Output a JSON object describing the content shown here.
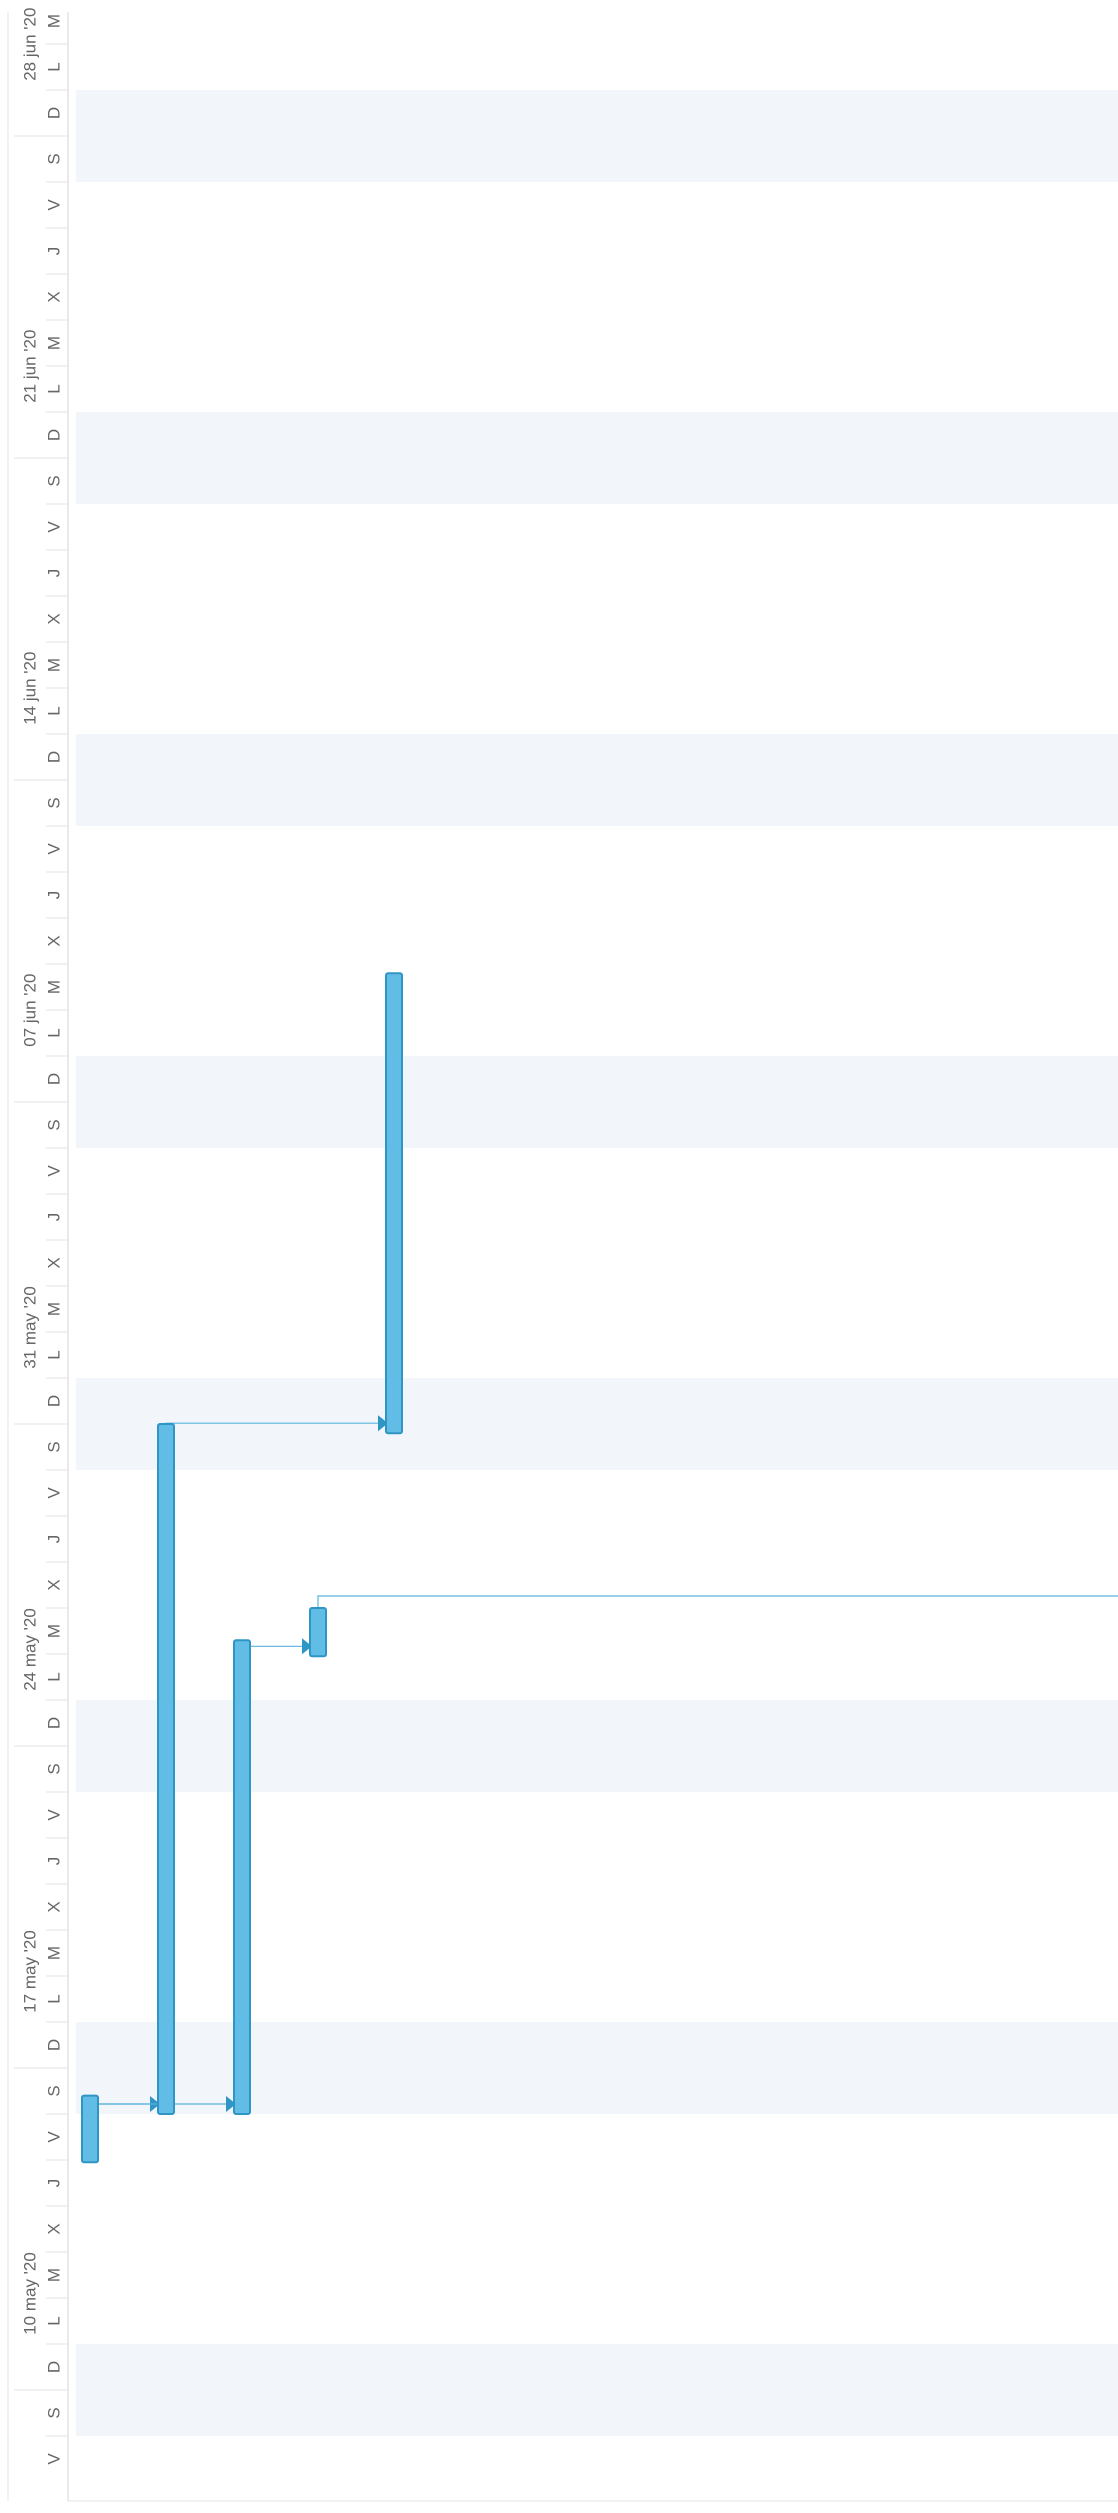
{
  "timeline": {
    "weeks": [
      {
        "label": "10 may '20"
      },
      {
        "label": "17 may '20"
      },
      {
        "label": "24 may '20"
      },
      {
        "label": "31 may '20"
      },
      {
        "label": "07 jun '20"
      },
      {
        "label": "14 jun '20"
      },
      {
        "label": "21 jun '20"
      },
      {
        "label": "28 jun '20"
      }
    ],
    "days": [
      "V",
      "S",
      "D",
      "L",
      "M",
      "X",
      "J",
      "V",
      "S",
      "D",
      "L",
      "M",
      "X",
      "J",
      "V",
      "S",
      "D",
      "L",
      "M",
      "X",
      "J",
      "V",
      "S",
      "D",
      "L",
      "M",
      "X",
      "J",
      "V",
      "S",
      "D",
      "L",
      "M",
      "X",
      "J",
      "V",
      "S",
      "D",
      "L",
      "M",
      "X",
      "J",
      "V",
      "S",
      "D",
      "L",
      "M",
      "X",
      "J",
      "V",
      "S",
      "D",
      "L",
      "M"
    ]
  },
  "tasks": [
    {
      "id": "task-1",
      "start_day": 6.95,
      "end_day": 8.4,
      "row": 1
    },
    {
      "id": "task-2",
      "start_day": 8.0,
      "end_day": 23.0,
      "row": 2
    },
    {
      "id": "task-3",
      "start_day": 8.0,
      "end_day": 18.3,
      "row": 3
    },
    {
      "id": "task-4",
      "start_day": 17.95,
      "end_day": 19.0,
      "row": 4
    },
    {
      "id": "task-5",
      "start_day": 22.8,
      "end_day": 32.8,
      "row": 5
    }
  ],
  "links": [
    {
      "from": "task-1",
      "to": "task-2"
    },
    {
      "from": "task-1",
      "to": "task-3"
    },
    {
      "from": "task-3",
      "to": "task-4"
    },
    {
      "from": "task-2",
      "to": "task-5"
    },
    {
      "from": "task-4",
      "to": "offscreen"
    }
  ],
  "colors": {
    "bar": "#62bde6",
    "bar_border": "#2e95c4",
    "link": "#5ab4dd",
    "weekend_band": "#f2f6fb",
    "grid": "#e3e3e3",
    "text": "#666666"
  }
}
